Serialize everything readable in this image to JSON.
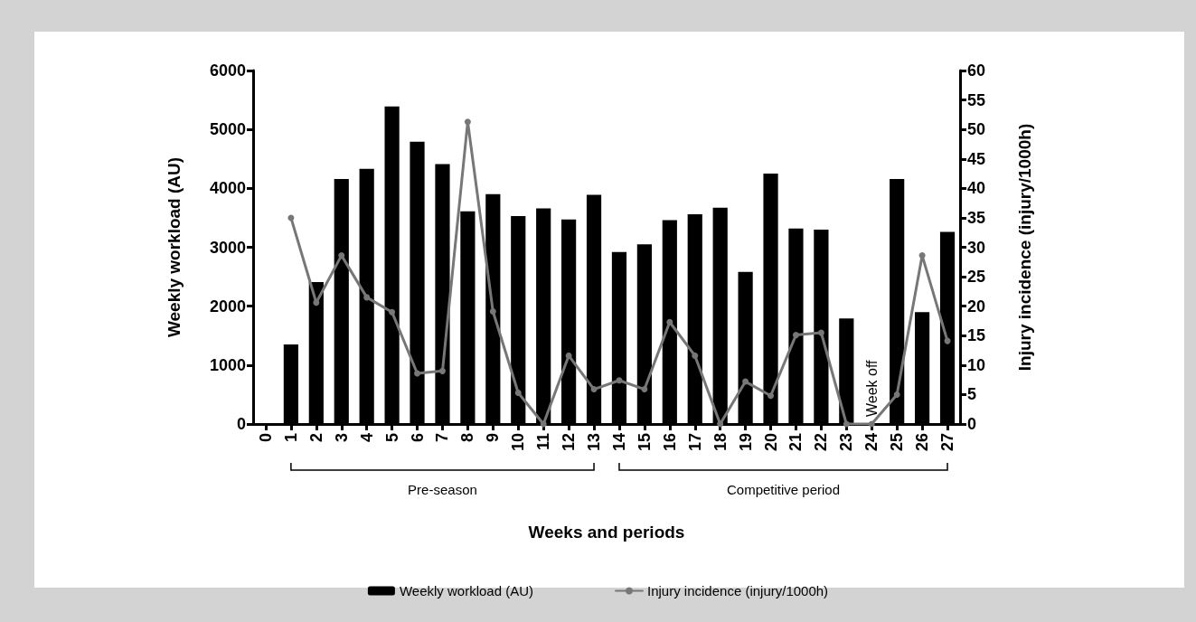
{
  "chart_data": {
    "type": "bar",
    "xlabel": "Weeks and periods",
    "ylabel": "Weekly workload (AU)",
    "y2label": "Injury incidence (injury/1000h)",
    "categories": [
      "0",
      "1",
      "2",
      "3",
      "4",
      "5",
      "6",
      "7",
      "8",
      "9",
      "10",
      "11",
      "12",
      "13",
      "14",
      "15",
      "16",
      "17",
      "18",
      "19",
      "20",
      "21",
      "22",
      "23",
      "24",
      "25",
      "26",
      "27"
    ],
    "series": [
      {
        "name": "Weekly workload (AU)",
        "color": "#000000",
        "values": [
          null,
          1350,
          2410,
          4160,
          4330,
          5390,
          4790,
          4410,
          3610,
          3900,
          3530,
          3660,
          3470,
          3890,
          2920,
          3050,
          3460,
          3560,
          3670,
          2580,
          4250,
          3320,
          3300,
          1790,
          null,
          4160,
          1900,
          3260
        ]
      },
      {
        "name": "Injury incidence (injury/1000h)",
        "type": "line",
        "axis": "y2",
        "color": "#777777",
        "values": [
          null,
          35.0,
          20.6,
          28.6,
          21.5,
          19.0,
          8.6,
          9.0,
          51.3,
          19.1,
          5.3,
          0,
          11.6,
          5.9,
          7.4,
          5.9,
          17.3,
          11.6,
          0,
          7.2,
          4.8,
          15.1,
          15.5,
          0,
          0,
          5.0,
          28.6,
          14.1
        ]
      }
    ],
    "ylim": [
      0,
      6000
    ],
    "yticks": [
      0,
      1000,
      2000,
      3000,
      4000,
      5000,
      6000
    ],
    "y2lim": [
      0,
      60
    ],
    "y2ticks": [
      0,
      5,
      10,
      15,
      20,
      25,
      30,
      35,
      40,
      45,
      50,
      55,
      60
    ],
    "annotations": [
      "Pre-season",
      "Competitive period",
      "Week off"
    ],
    "grid": false,
    "legend": "bottom",
    "marker": "circle",
    "line_style": "solid"
  }
}
